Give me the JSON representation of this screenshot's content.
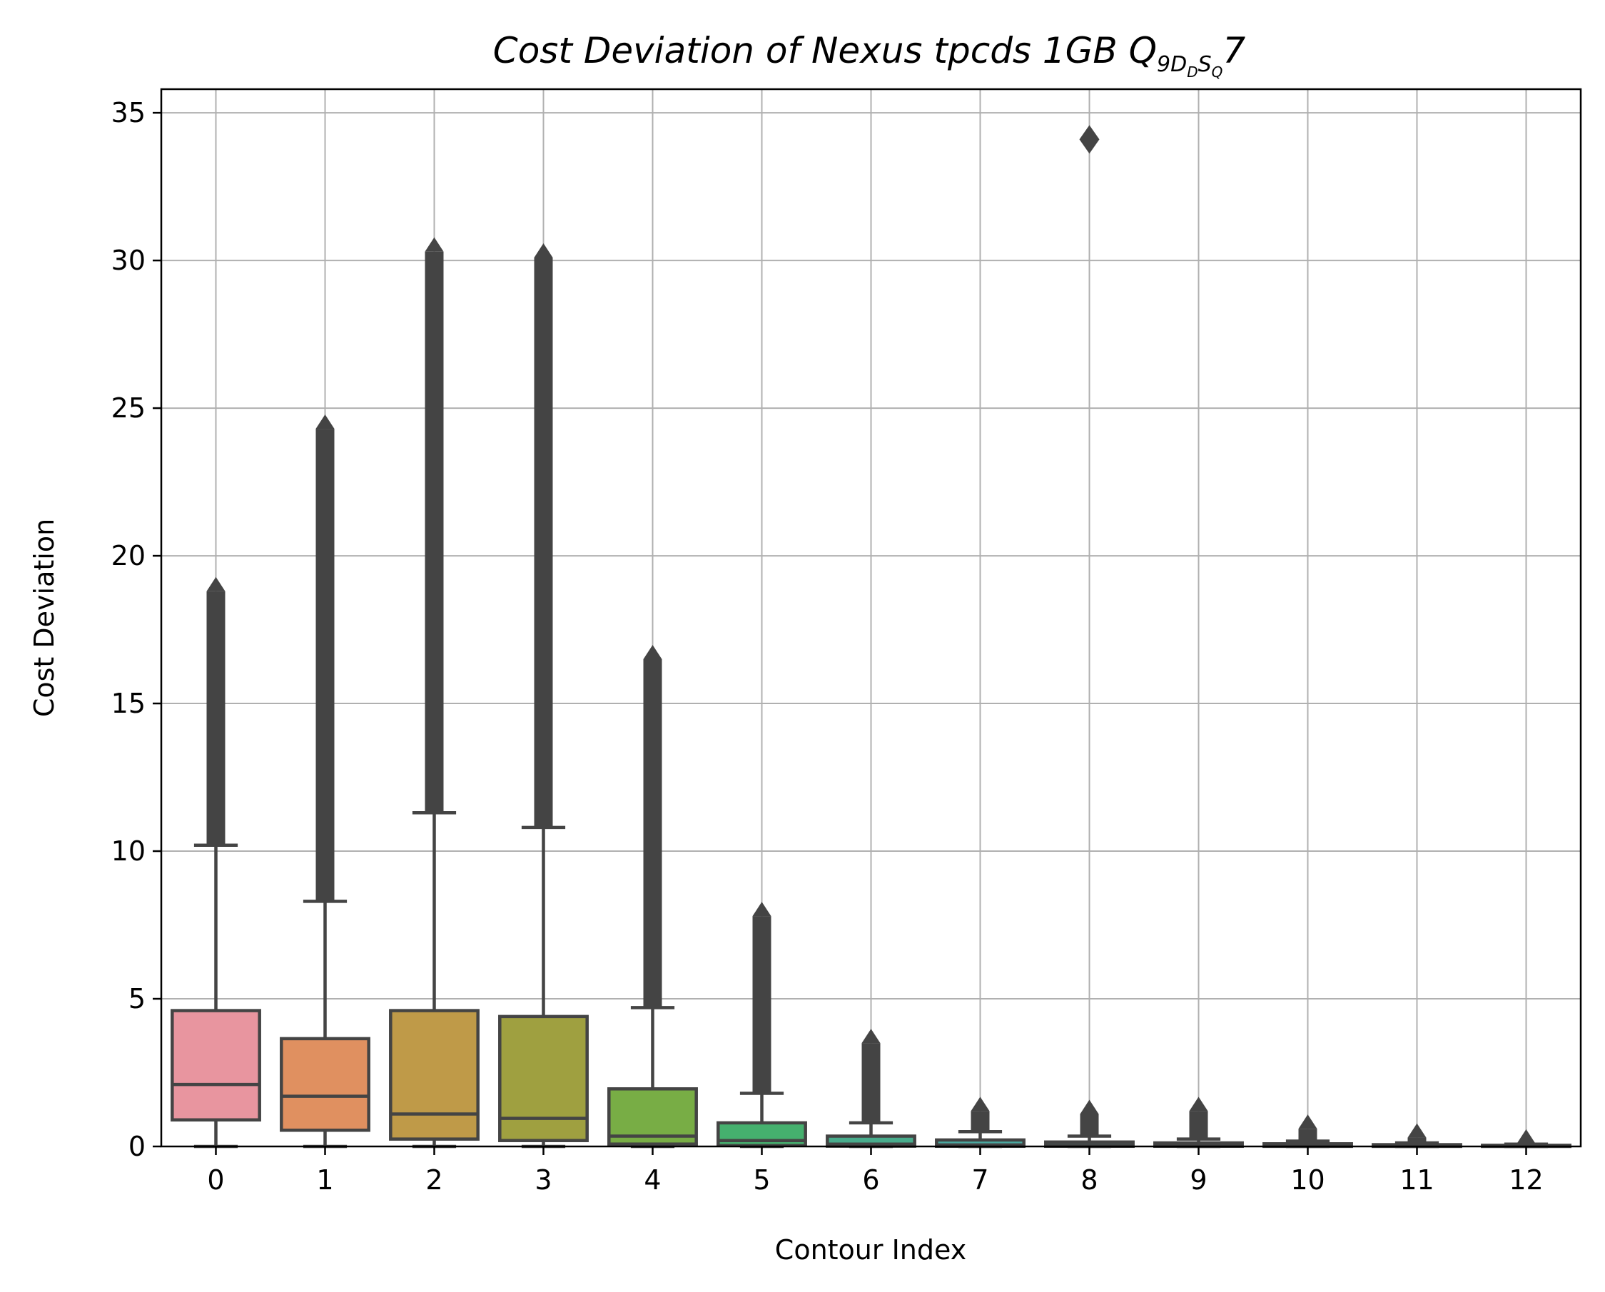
{
  "chart_data": {
    "type": "box",
    "title": {
      "prefix": "Cost Deviation of Nexus tpcds  1GB  ",
      "q_main": "Q",
      "q_sub": "9",
      "d_main": "D",
      "d_sub": "D",
      "s_main": "S",
      "s_sub": "Q",
      "suffix": "7"
    },
    "xlabel": "Contour Index",
    "ylabel": "Cost Deviation",
    "ylim": [
      0,
      35.8
    ],
    "yticks": [
      0,
      5,
      10,
      15,
      20,
      25,
      30,
      35
    ],
    "grid": true,
    "categories": [
      "0",
      "1",
      "2",
      "3",
      "4",
      "5",
      "6",
      "7",
      "8",
      "9",
      "10",
      "11",
      "12"
    ],
    "colors": [
      "#e8959f",
      "#e09060",
      "#bf9a48",
      "#9fa040",
      "#78ad45",
      "#45b06e",
      "#48ac8c",
      "#4aa8a0",
      "#4aa4ae",
      "#4c9fbe",
      "#6e98d6",
      "#9f8ae0",
      "#c880d4"
    ],
    "boxes": [
      {
        "whislo": 0.0,
        "q1": 0.9,
        "med": 2.1,
        "q3": 4.6,
        "whishi": 10.2,
        "flier_lo": 10.2,
        "flier_hi": 18.8
      },
      {
        "whislo": 0.0,
        "q1": 0.55,
        "med": 1.7,
        "q3": 3.65,
        "whishi": 8.3,
        "flier_lo": 8.3,
        "flier_hi": 24.3
      },
      {
        "whislo": 0.0,
        "q1": 0.25,
        "med": 1.1,
        "q3": 4.6,
        "whishi": 11.3,
        "flier_lo": 11.3,
        "flier_hi": 30.3
      },
      {
        "whislo": 0.0,
        "q1": 0.2,
        "med": 0.95,
        "q3": 4.4,
        "whishi": 10.8,
        "flier_lo": 10.8,
        "flier_hi": 30.1
      },
      {
        "whislo": 0.0,
        "q1": 0.08,
        "med": 0.35,
        "q3": 1.95,
        "whishi": 4.7,
        "flier_lo": 4.7,
        "flier_hi": 16.5
      },
      {
        "whislo": 0.0,
        "q1": 0.03,
        "med": 0.2,
        "q3": 0.8,
        "whishi": 1.8,
        "flier_lo": 1.8,
        "flier_hi": 7.8
      },
      {
        "whislo": 0.0,
        "q1": 0.01,
        "med": 0.08,
        "q3": 0.35,
        "whishi": 0.8,
        "flier_lo": 0.8,
        "flier_hi": 3.5
      },
      {
        "whislo": 0.0,
        "q1": 0.005,
        "med": 0.05,
        "q3": 0.22,
        "whishi": 0.5,
        "flier_lo": 0.5,
        "flier_hi": 1.2
      },
      {
        "whislo": 0.0,
        "q1": 0.005,
        "med": 0.04,
        "q3": 0.15,
        "whishi": 0.35,
        "flier_lo": 0.35,
        "flier_hi": 1.1,
        "extra_outlier": 34.1
      },
      {
        "whislo": 0.0,
        "q1": 0.005,
        "med": 0.03,
        "q3": 0.12,
        "whishi": 0.25,
        "flier_lo": 0.25,
        "flier_hi": 1.2
      },
      {
        "whislo": 0.0,
        "q1": 0.003,
        "med": 0.02,
        "q3": 0.09,
        "whishi": 0.18,
        "flier_lo": 0.18,
        "flier_hi": 0.6
      },
      {
        "whislo": 0.0,
        "q1": 0.002,
        "med": 0.015,
        "q3": 0.06,
        "whishi": 0.12,
        "flier_lo": 0.12,
        "flier_hi": 0.3
      },
      {
        "whislo": 0.0,
        "q1": 0.001,
        "med": 0.01,
        "q3": 0.04,
        "whishi": 0.08,
        "flier_lo": 0.08,
        "flier_hi": 0.1
      }
    ],
    "line_color": "#444444",
    "grid_color": "#b0b0b0"
  }
}
